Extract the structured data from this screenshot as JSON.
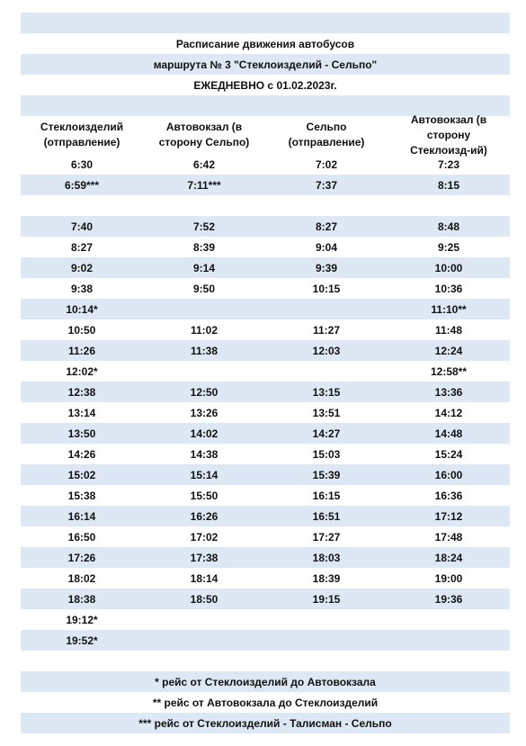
{
  "header": {
    "title": "Расписание движения автобусов",
    "route": "маршрута № 3 \"Стеклоизделий - Сельпо\"",
    "schedule": "ЕЖЕДНЕВНО с 01.02.2023г."
  },
  "table": {
    "columns": [
      "Стеклоизделий (отправление)",
      "Автовокзал (в сторону Сельпо)",
      "Сельпо (отправление)",
      "Автовокзал (в сторону Стеклоизд-ий)"
    ],
    "rows": [
      [
        "6:30",
        "6:42",
        "7:02",
        "7:23"
      ],
      [
        "6:59***",
        "7:11***",
        "7:37",
        "8:15"
      ],
      [
        null,
        null,
        null,
        null
      ],
      [
        "7:40",
        "7:52",
        "8:27",
        "8:48"
      ],
      [
        "8:27",
        "8:39",
        "9:04",
        "9:25"
      ],
      [
        "9:02",
        "9:14",
        "9:39",
        "10:00"
      ],
      [
        "9:38",
        "9:50",
        "10:15",
        "10:36"
      ],
      [
        "10:14*",
        null,
        null,
        "11:10**"
      ],
      [
        "10:50",
        "11:02",
        "11:27",
        "11:48"
      ],
      [
        "11:26",
        "11:38",
        "12:03",
        "12:24"
      ],
      [
        "12:02*",
        null,
        null,
        "12:58**"
      ],
      [
        "12:38",
        "12:50",
        "13:15",
        "13:36"
      ],
      [
        "13:14",
        "13:26",
        "13:51",
        "14:12"
      ],
      [
        "13:50",
        "14:02",
        "14:27",
        "14:48"
      ],
      [
        "14:26",
        "14:38",
        "15:03",
        "15:24"
      ],
      [
        "15:02",
        "15:14",
        "15:39",
        "16:00"
      ],
      [
        "15:38",
        "15:50",
        "16:15",
        "16:36"
      ],
      [
        "16:14",
        "16:26",
        "16:51",
        "17:12"
      ],
      [
        "16:50",
        "17:02",
        "17:27",
        "17:48"
      ],
      [
        "17:26",
        "17:38",
        "18:03",
        "18:24"
      ],
      [
        "18:02",
        "18:14",
        "18:39",
        "19:00"
      ],
      [
        "18:38",
        "18:50",
        "19:15",
        "19:36"
      ],
      [
        "19:12*",
        null,
        null,
        null
      ],
      [
        "19:52*",
        null,
        null,
        null
      ]
    ]
  },
  "footnotes": [
    "* рейс от Стеклоизделий до Автовокзала",
    "** рейс от Автовокзала до Стеклоизделий",
    "*** рейс от Стеклоизделий - Талисман - Сельпо"
  ]
}
